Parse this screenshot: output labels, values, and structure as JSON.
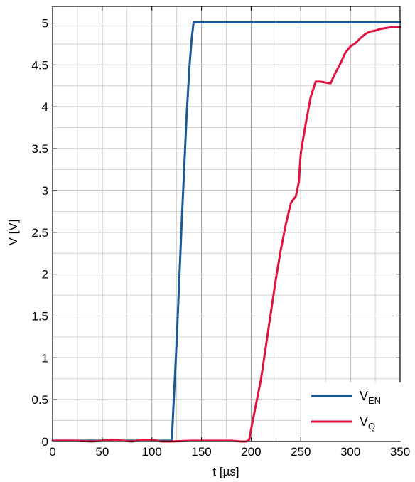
{
  "chart_data": {
    "type": "line",
    "title": "",
    "xlabel": "t [µs]",
    "ylabel": "V [V]",
    "xlim": [
      0,
      350
    ],
    "ylim": [
      0,
      5.2
    ],
    "xticks": [
      0,
      50,
      100,
      150,
      200,
      250,
      300,
      350
    ],
    "xtick_labels": [
      "0",
      "50",
      "100",
      "150",
      "200",
      "250",
      "300",
      "350"
    ],
    "yticks": [
      0,
      0.5,
      1,
      1.5,
      2,
      2.5,
      3,
      3.5,
      4,
      4.5,
      5
    ],
    "ytick_labels": [
      "0",
      "0.5",
      "1",
      "1.5",
      "2",
      "2.5",
      "3",
      "3.5",
      "4",
      "4.5",
      "5"
    ],
    "grid": true,
    "minor_grid": true,
    "legend_position": "bottom-right",
    "series": [
      {
        "name": "V_EN",
        "label_main": "V",
        "label_sub": "EN",
        "color": "#1a5a96",
        "x": [
          0,
          20,
          40,
          60,
          80,
          100,
          110,
          118,
          120,
          125,
          130,
          135,
          138,
          140,
          142,
          145,
          150,
          200,
          250,
          300,
          350
        ],
        "y": [
          0.01,
          0.01,
          0.01,
          0.01,
          0.01,
          0.01,
          0.01,
          0.01,
          0.0,
          1.2,
          2.6,
          3.9,
          4.5,
          4.8,
          5.01,
          5.01,
          5.01,
          5.01,
          5.01,
          5.01,
          5.01
        ]
      },
      {
        "name": "V_Q",
        "label_main": "V",
        "label_sub": "Q",
        "color": "#e0133e",
        "x": [
          0,
          20,
          40,
          60,
          80,
          90,
          100,
          110,
          120,
          140,
          160,
          180,
          190,
          195,
          198,
          200,
          205,
          210,
          215,
          220,
          225,
          230,
          235,
          240,
          245,
          248,
          250,
          255,
          260,
          265,
          268,
          270,
          275,
          280,
          285,
          290,
          295,
          300,
          305,
          310,
          315,
          320,
          325,
          330,
          335,
          340,
          345,
          350
        ],
        "y": [
          0.01,
          0.01,
          0.0,
          0.02,
          0.0,
          0.02,
          0.02,
          0.0,
          0.0,
          0.01,
          0.01,
          0.01,
          0.0,
          0.0,
          0.02,
          0.15,
          0.45,
          0.75,
          1.15,
          1.55,
          1.95,
          2.3,
          2.6,
          2.85,
          2.93,
          3.1,
          3.45,
          3.8,
          4.12,
          4.3,
          4.3,
          4.3,
          4.29,
          4.28,
          4.41,
          4.52,
          4.65,
          4.72,
          4.76,
          4.82,
          4.87,
          4.9,
          4.91,
          4.93,
          4.94,
          4.95,
          4.95,
          4.95
        ]
      }
    ]
  }
}
